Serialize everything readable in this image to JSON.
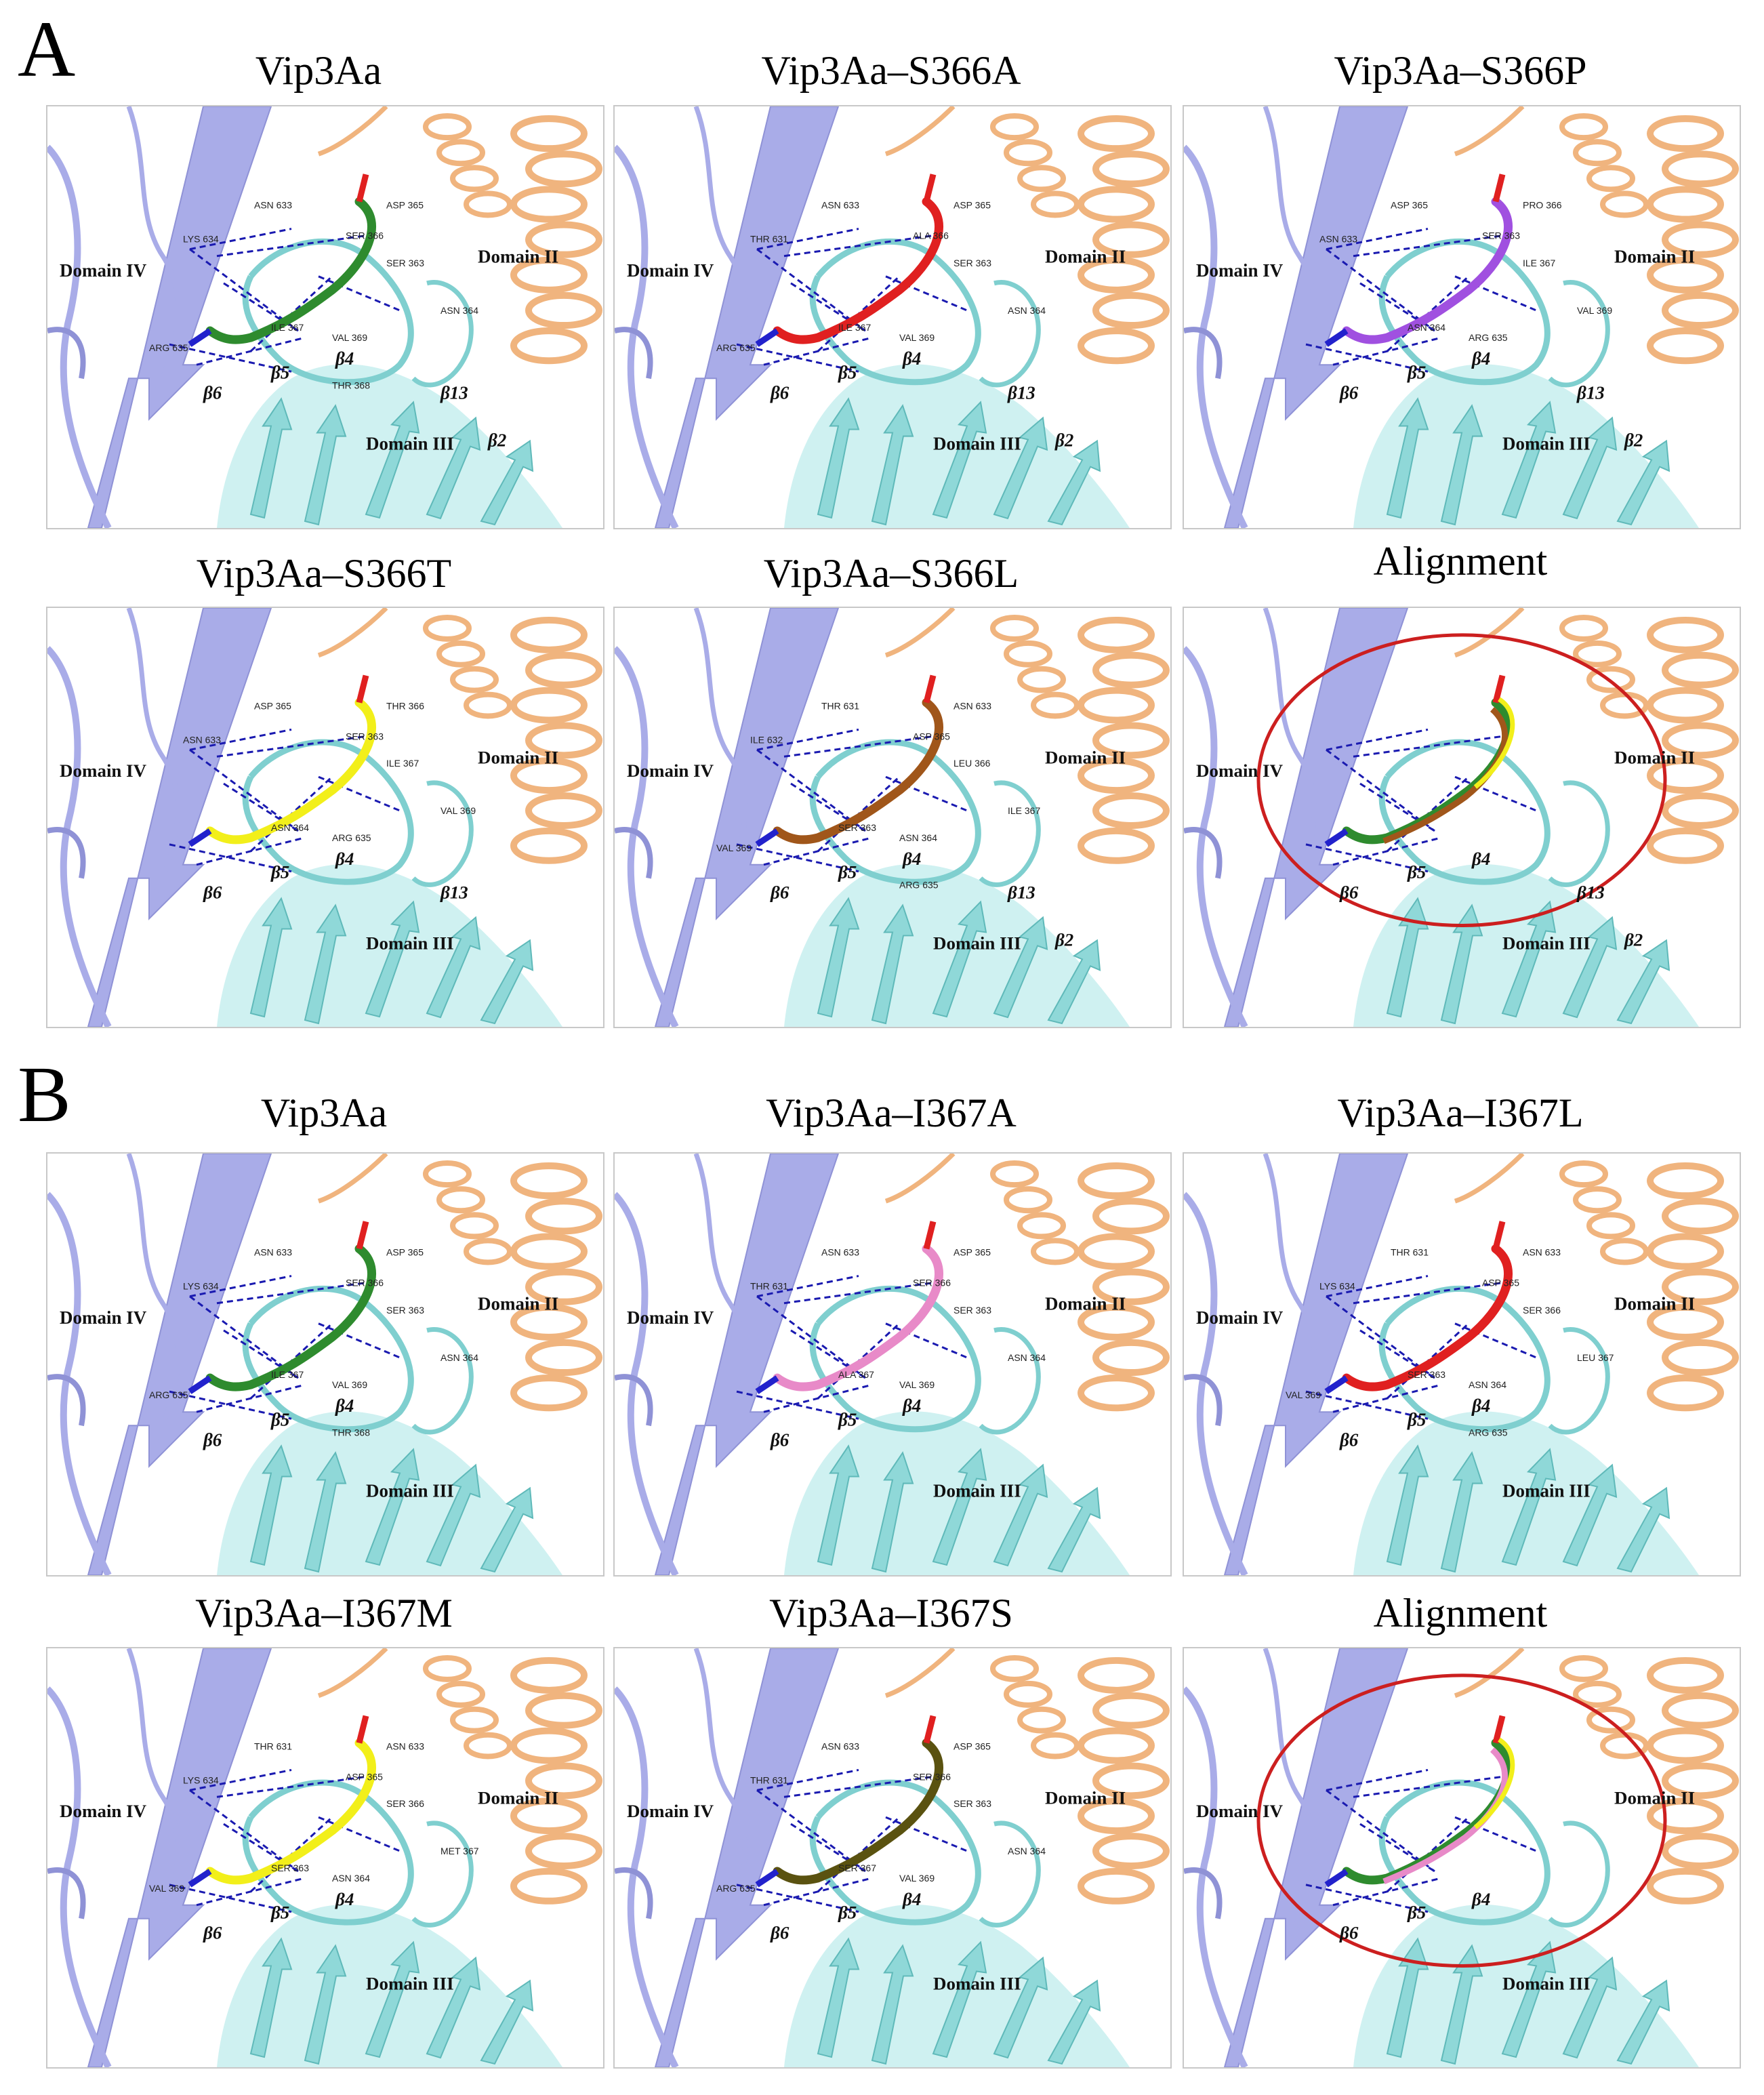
{
  "colors": {
    "domain_IV": "#a9ace8",
    "domain_III": "#a8e6e6",
    "domain_II": "#f0b47e",
    "hbond": "#1a1ab0",
    "highlight_circle": "#cc1f1f"
  },
  "sections": [
    {
      "letter": "A",
      "panels": [
        {
          "title": "Vip3Aa",
          "stick_color": "#2e8b2e",
          "domain_labels": [
            "Domain IV",
            "Domain II",
            "Domain III"
          ],
          "beta_labels": [
            "β6",
            "β5",
            "β4",
            "β13",
            "β2"
          ],
          "residue_labels": [
            "LYS 634",
            "ASN 633",
            "ASP 365",
            "SER 366",
            "SER 363",
            "ILE 367",
            "ASN 364",
            "VAL 369",
            "ARG 635",
            "THR 368"
          ]
        },
        {
          "title": "Vip3Aa–S366A",
          "stick_color": "#e02020",
          "domain_labels": [
            "Domain IV",
            "Domain II",
            "Domain III"
          ],
          "beta_labels": [
            "β6",
            "β5",
            "β4",
            "β13",
            "β2"
          ],
          "residue_labels": [
            "THR 631",
            "ASN 633",
            "ASP 365",
            "ALA 366",
            "SER 363",
            "ILE 367",
            "ASN 364",
            "VAL 369",
            "ARG 635"
          ]
        },
        {
          "title": "Vip3Aa–S366P",
          "stick_color": "#a050e0",
          "domain_labels": [
            "Domain IV",
            "Domain II",
            "Domain III"
          ],
          "beta_labels": [
            "β6",
            "β5",
            "β4",
            "β13",
            "β2"
          ],
          "residue_labels": [
            "ASN 633",
            "ASP 365",
            "PRO 366",
            "SER 363",
            "ILE 367",
            "ASN 364",
            "VAL 369",
            "ARG 635"
          ]
        },
        {
          "title": "Vip3Aa–S366T",
          "stick_color": "#f2ef1a",
          "domain_labels": [
            "Domain IV",
            "Domain II",
            "Domain III"
          ],
          "beta_labels": [
            "β6",
            "β5",
            "β4",
            "β13"
          ],
          "residue_labels": [
            "ASN 633",
            "ASP 365",
            "THR 366",
            "SER 363",
            "ILE 367",
            "ASN 364",
            "VAL 369",
            "ARG 635"
          ]
        },
        {
          "title": "Vip3Aa–S366L",
          "stick_color": "#a0561a",
          "domain_labels": [
            "Domain IV",
            "Domain II",
            "Domain III"
          ],
          "beta_labels": [
            "β6",
            "β5",
            "β4",
            "β13",
            "β2"
          ],
          "residue_labels": [
            "ILE 632",
            "THR 631",
            "ASN 633",
            "ASP 365",
            "LEU 366",
            "SER 363",
            "ILE 367",
            "ASN 364",
            "VAL 369",
            "ARG 635"
          ]
        },
        {
          "title": "Alignment",
          "stick_color": "#2e8b2e",
          "domain_labels": [
            "Domain IV",
            "Domain II",
            "Domain III"
          ],
          "beta_labels": [
            "β6",
            "β5",
            "β4",
            "β13",
            "β2"
          ],
          "residue_labels": []
        }
      ]
    },
    {
      "letter": "B",
      "panels": [
        {
          "title": "Vip3Aa",
          "stick_color": "#2e8b2e",
          "domain_labels": [
            "Domain IV",
            "Domain II",
            "Domain III"
          ],
          "beta_labels": [
            "β6",
            "β5",
            "β4"
          ],
          "residue_labels": [
            "LYS 634",
            "ASN 633",
            "ASP 365",
            "SER 366",
            "SER 363",
            "ILE 367",
            "ASN 364",
            "VAL 369",
            "ARG 635",
            "THR 368"
          ]
        },
        {
          "title": "Vip3Aa–I367A",
          "stick_color": "#e88ac8",
          "domain_labels": [
            "Domain IV",
            "Domain II",
            "Domain III"
          ],
          "beta_labels": [
            "β6",
            "β5",
            "β4"
          ],
          "residue_labels": [
            "THR 631",
            "ASN 633",
            "ASP 365",
            "SER 366",
            "SER 363",
            "ALA 367",
            "ASN 364",
            "VAL 369"
          ]
        },
        {
          "title": "Vip3Aa–I367L",
          "stick_color": "#e02020",
          "domain_labels": [
            "Domain IV",
            "Domain II",
            "Domain III"
          ],
          "beta_labels": [
            "β6",
            "β5",
            "β4"
          ],
          "residue_labels": [
            "LYS 634",
            "THR 631",
            "ASN 633",
            "ASP 365",
            "SER 366",
            "SER 363",
            "LEU 367",
            "ASN 364",
            "VAL 369",
            "ARG 635"
          ]
        },
        {
          "title": "Vip3Aa–I367M",
          "stick_color": "#f2ef1a",
          "domain_labels": [
            "Domain IV",
            "Domain II",
            "Domain III"
          ],
          "beta_labels": [
            "β6",
            "β5",
            "β4"
          ],
          "residue_labels": [
            "LYS 634",
            "THR 631",
            "ASN 633",
            "ASP 365",
            "SER 366",
            "SER 363",
            "MET 367",
            "ASN 364",
            "VAL 369"
          ]
        },
        {
          "title": "Vip3Aa–I367S",
          "stick_color": "#5a5210",
          "domain_labels": [
            "Domain IV",
            "Domain II",
            "Domain III"
          ],
          "beta_labels": [
            "β6",
            "β5",
            "β4"
          ],
          "residue_labels": [
            "THR 631",
            "ASN 633",
            "ASP 365",
            "SER 366",
            "SER 363",
            "SER 367",
            "ASN 364",
            "VAL 369",
            "ARG 635"
          ]
        },
        {
          "title": "Alignment",
          "stick_color": "#2e8b2e",
          "domain_labels": [
            "Domain IV",
            "Domain II",
            "Domain III"
          ],
          "beta_labels": [
            "β6",
            "β5",
            "β4"
          ],
          "residue_labels": []
        }
      ]
    }
  ]
}
